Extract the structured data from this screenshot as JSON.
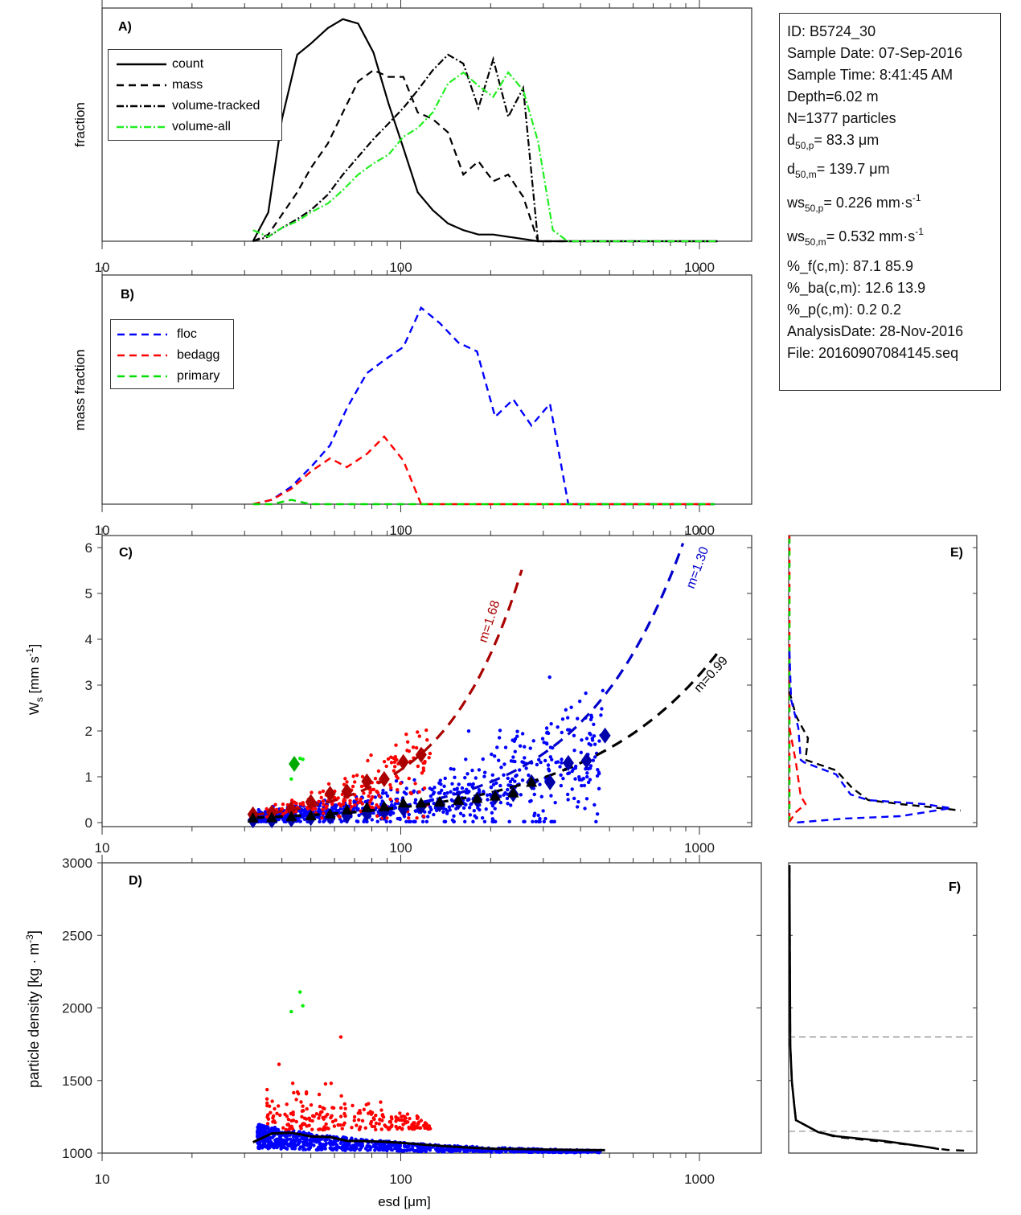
{
  "info": {
    "id": "ID: B5724_30",
    "sample_date": "Sample Date: 07-Sep-2016",
    "sample_time": "Sample Time:  8:41:45 AM",
    "depth": "Depth=6.02 m",
    "n": "N=1377 particles",
    "d50p_label": "d",
    "d50p_sub": "50,p",
    "d50p_value": "=  83.3 μm",
    "d50m_label": "d",
    "d50m_sub": "50,m",
    "d50m_value": "= 139.7 μm",
    "ws50p_label": "ws",
    "ws50p_sub": "50,p",
    "ws50p_value": "= 0.226 mm·s",
    "ws50p_sup": "-1",
    "ws50m_label": "ws",
    "ws50m_sub": "50,m",
    "ws50m_value": "= 0.532 mm·s",
    "ws50m_sup": "-1",
    "pct_f": "%_f(c,m): 87.1 85.9",
    "pct_ba": "%_ba(c,m): 12.6 13.9",
    "pct_p": "%_p(c,m): 0.2 0.2",
    "analysis_date": "AnalysisDate: 28-Nov-2016",
    "file": "File: 20160907084145.seq"
  },
  "colors": {
    "floc": "#0000ff",
    "bedagg": "#ff0000",
    "primary": "#00dd00",
    "volume_all": "#22ee22",
    "dark_red": "#aa0000",
    "dark_blue": "#0000aa",
    "black": "#000000",
    "green_diamond": "#00aa00"
  },
  "chart_data": [
    {
      "panel": "A",
      "type": "line",
      "label": "A)",
      "xlabel": "",
      "ylabel": "fraction",
      "xscale": "log",
      "xlim": [
        10,
        1500
      ],
      "xticks": [
        "10",
        "100",
        "1000"
      ],
      "ylim": [
        0,
        1.05
      ],
      "legend_position": "top-left",
      "x": [
        32,
        36,
        40,
        45,
        50,
        57,
        64,
        72,
        81,
        91,
        102,
        114,
        128,
        144,
        162,
        182,
        204,
        229,
        257,
        288,
        323,
        362,
        406,
        456,
        512,
        575,
        645,
        724,
        812,
        912,
        1024,
        1150
      ],
      "series": [
        {
          "name": "count",
          "style": "solid",
          "color": "#000000",
          "values": [
            0.0,
            0.13,
            0.55,
            0.84,
            0.89,
            0.96,
            1.0,
            0.98,
            0.85,
            0.62,
            0.42,
            0.22,
            0.14,
            0.08,
            0.05,
            0.03,
            0.03,
            0.02,
            0.01,
            0.0,
            0.0,
            0.0,
            0.0,
            0.0,
            0.0,
            0.0,
            0.0,
            0.0,
            0.0,
            0.0,
            0.0,
            0.0
          ]
        },
        {
          "name": "mass",
          "style": "dashed",
          "color": "#000000",
          "values": [
            0.0,
            0.03,
            0.12,
            0.22,
            0.33,
            0.44,
            0.58,
            0.72,
            0.77,
            0.74,
            0.74,
            0.58,
            0.55,
            0.49,
            0.3,
            0.36,
            0.27,
            0.3,
            0.2,
            0.0,
            0.0,
            0.0,
            0.0,
            0.0,
            0.0,
            0.0,
            0.0,
            0.0,
            0.0,
            0.0,
            0.0,
            0.0
          ]
        },
        {
          "name": "volume-tracked",
          "style": "dashdot",
          "color": "#000000",
          "values": [
            0.0,
            0.02,
            0.06,
            0.1,
            0.14,
            0.21,
            0.3,
            0.38,
            0.46,
            0.53,
            0.6,
            0.68,
            0.77,
            0.84,
            0.8,
            0.6,
            0.82,
            0.56,
            0.69,
            0.0,
            0.0,
            0.0,
            0.0,
            0.0,
            0.0,
            0.0,
            0.0,
            0.0,
            0.0,
            0.0,
            0.0,
            0.0
          ]
        },
        {
          "name": "volume-all",
          "style": "dashdot",
          "color": "#22ee22",
          "values": [
            0.05,
            0.02,
            0.06,
            0.09,
            0.13,
            0.17,
            0.23,
            0.3,
            0.35,
            0.39,
            0.47,
            0.51,
            0.58,
            0.71,
            0.76,
            0.7,
            0.65,
            0.76,
            0.68,
            0.45,
            0.05,
            0.0,
            0.0,
            0.0,
            0.0,
            0.0,
            0.0,
            0.0,
            0.0,
            0.0,
            0.0,
            0.0
          ]
        }
      ]
    },
    {
      "panel": "B",
      "type": "line",
      "label": "B)",
      "xlabel": "",
      "ylabel": "mass fraction",
      "xscale": "log",
      "xlim": [
        10,
        1500
      ],
      "xticks": [
        "10",
        "100",
        "1000"
      ],
      "ylim": [
        0,
        1.05
      ],
      "legend_position": "top-left",
      "x": [
        32,
        37,
        43,
        50,
        58,
        66,
        77,
        88,
        102,
        117,
        135,
        156,
        180,
        207,
        238,
        274,
        316,
        364,
        419,
        483,
        556,
        640,
        737,
        849,
        978,
        1126
      ],
      "series": [
        {
          "name": "floc",
          "style": "dashed",
          "color": "#0000ff",
          "values": [
            0.0,
            0.02,
            0.08,
            0.17,
            0.27,
            0.44,
            0.6,
            0.66,
            0.72,
            0.9,
            0.83,
            0.74,
            0.7,
            0.4,
            0.48,
            0.36,
            0.46,
            0.0,
            0.0,
            0.0,
            0.0,
            0.0,
            0.0,
            0.0,
            0.0,
            0.0
          ]
        },
        {
          "name": "bedagg",
          "style": "dashed",
          "color": "#ff0000",
          "values": [
            0.0,
            0.02,
            0.07,
            0.15,
            0.21,
            0.17,
            0.23,
            0.31,
            0.2,
            0.0,
            0.0,
            0.0,
            0.0,
            0.0,
            0.0,
            0.0,
            0.0,
            0.0,
            0.0,
            0.0,
            0.0,
            0.0,
            0.0,
            0.0,
            0.0,
            0.0
          ]
        },
        {
          "name": "primary",
          "style": "dashed",
          "color": "#00dd00",
          "values": [
            0.0,
            0.0,
            0.02,
            0.0,
            0.0,
            0.0,
            0.0,
            0.0,
            0.0,
            0.0,
            0.0,
            0.0,
            0.0,
            0.0,
            0.0,
            0.0,
            0.0,
            0.0,
            0.0,
            0.0,
            0.0,
            0.0,
            0.0,
            0.0,
            0.0,
            0.0
          ]
        }
      ]
    },
    {
      "panel": "C",
      "type": "scatter",
      "label": "C)",
      "xlabel": "",
      "ylabel": "W_s [mm s^-1]",
      "xscale": "log",
      "xlim": [
        10,
        1500
      ],
      "xticks": [
        "10",
        "100",
        "1000"
      ],
      "ylim": [
        0,
        6.2
      ],
      "yticks": [
        "0",
        "1",
        "2",
        "3",
        "4",
        "5",
        "6"
      ],
      "fits": [
        {
          "name": "bedagg-fit",
          "annotation": "m=1.68",
          "color": "#aa0000",
          "exponent": 1.68,
          "coef_at_100": 1.15,
          "x_range": [
            32,
            260
          ]
        },
        {
          "name": "floc-fit",
          "annotation": "m=1.30",
          "color": "#0000cc",
          "exponent": 1.3,
          "coef_at_100": 0.36,
          "x_range": [
            32,
            1200
          ]
        },
        {
          "name": "all-fit",
          "annotation": "m=0.99",
          "color": "#000000",
          "exponent": 0.99,
          "coef_at_100": 0.33,
          "x_range": [
            32,
            1200
          ]
        }
      ],
      "bin_means": {
        "bedagg": {
          "x": [
            32,
            37,
            43,
            50,
            58,
            66,
            77,
            88,
            102,
            117
          ],
          "y": [
            0.18,
            0.22,
            0.3,
            0.45,
            0.63,
            0.68,
            0.9,
            0.95,
            1.32,
            1.48
          ]
        },
        "floc": {
          "x": [
            32,
            37,
            43,
            50,
            58,
            66,
            77,
            88,
            102,
            117,
            135,
            156,
            180,
            207,
            238,
            274,
            316,
            364,
            419,
            483
          ],
          "y": [
            0.05,
            0.05,
            0.07,
            0.1,
            0.13,
            0.15,
            0.2,
            0.24,
            0.3,
            0.35,
            0.4,
            0.45,
            0.5,
            0.56,
            0.62,
            0.88,
            0.88,
            1.3,
            1.35,
            1.9
          ]
        },
        "all": {
          "x": [
            32,
            37,
            43,
            50,
            58,
            66,
            77,
            88,
            102,
            117,
            135,
            156,
            180,
            207,
            238,
            274
          ],
          "y": [
            0.07,
            0.08,
            0.1,
            0.12,
            0.16,
            0.25,
            0.3,
            0.32,
            0.4,
            0.4,
            0.42,
            0.46,
            0.5,
            0.55,
            0.62,
            0.85
          ]
        },
        "primary": {
          "x": [
            44
          ],
          "y": [
            1.28
          ]
        }
      },
      "primary_points": {
        "x": [
          43,
          46,
          47
        ],
        "y": [
          0.95,
          1.4,
          1.38
        ]
      }
    },
    {
      "panel": "D",
      "type": "scatter",
      "label": "D)",
      "xlabel": "esd [μm]",
      "ylabel": "particle density [kg · m^-3]",
      "xscale": "log",
      "xlim": [
        10,
        1500
      ],
      "xticks": [
        "10",
        "100",
        "1000"
      ],
      "ylim": [
        1000,
        3000
      ],
      "yticks": [
        "1000",
        "1500",
        "2000",
        "2500",
        "3000"
      ],
      "mean_line": {
        "x": [
          32,
          37,
          43,
          50,
          58,
          66,
          77,
          88,
          102,
          117,
          135,
          156,
          180,
          207,
          238,
          274,
          316,
          364,
          419,
          483
        ],
        "y": [
          1075,
          1135,
          1140,
          1115,
          1110,
          1085,
          1082,
          1078,
          1070,
          1060,
          1050,
          1042,
          1035,
          1030,
          1028,
          1026,
          1024,
          1022,
          1021,
          1020
        ]
      },
      "primary_points": {
        "x": [
          43,
          46,
          47
        ],
        "y": [
          1975,
          2110,
          2015
        ]
      },
      "bedagg_outlier": {
        "x": [
          63
        ],
        "y": [
          1800
        ]
      }
    },
    {
      "panel": "E",
      "type": "line",
      "label": "E)",
      "orientation": "vertical-distribution",
      "ylim": [
        0,
        6.2
      ],
      "series": [
        {
          "name": "all",
          "color": "#000000",
          "style": "dashed"
        },
        {
          "name": "floc",
          "color": "#0000ff",
          "style": "dashed"
        },
        {
          "name": "bedagg",
          "color": "#ff0000",
          "style": "dashed"
        },
        {
          "name": "primary",
          "color": "#00dd00",
          "style": "dashed"
        }
      ]
    },
    {
      "panel": "F",
      "type": "line",
      "label": "F)",
      "orientation": "vertical-distribution",
      "ylim": [
        1000,
        3000
      ],
      "reference_lines": [
        1800,
        1150
      ],
      "series": [
        {
          "name": "all",
          "color": "#000000",
          "style": "solid"
        },
        {
          "name": "floc",
          "color": "#000000",
          "style": "dashed"
        }
      ]
    }
  ]
}
